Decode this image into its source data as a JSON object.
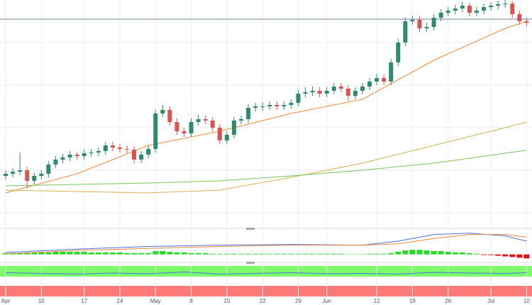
{
  "chart_data": [
    {
      "type": "candlestick",
      "categories": [
        "Apr",
        null,
        null,
        null,
        null,
        "10",
        null,
        null,
        null,
        null,
        null,
        "17",
        null,
        null,
        null,
        null,
        "24",
        null,
        null,
        null,
        null,
        "May",
        null,
        null,
        null,
        null,
        "8",
        null,
        null,
        null,
        null,
        "15",
        null,
        null,
        null,
        null,
        "22",
        null,
        null,
        null,
        null,
        "29",
        null,
        null,
        null,
        "Jun",
        null,
        null,
        null,
        null,
        null,
        null,
        "12",
        null,
        null,
        null,
        null,
        "19",
        null,
        null,
        null,
        null,
        "26",
        null,
        null,
        null,
        null,
        null,
        "Jul",
        null,
        null,
        null,
        null,
        "10"
      ],
      "open": [
        72,
        75,
        78,
        80,
        65,
        72,
        75,
        88,
        95,
        98,
        102,
        100,
        104,
        105,
        107,
        115,
        112,
        110,
        109,
        95,
        102,
        110,
        160,
        165,
        148,
        135,
        132,
        148,
        152,
        150,
        140,
        122,
        130,
        150,
        152,
        168,
        170,
        170,
        172,
        170,
        172,
        175,
        188,
        190,
        192,
        188,
        192,
        198,
        195,
        185,
        192,
        198,
        205,
        210,
        205,
        232,
        260,
        290,
        292,
        280,
        282,
        295,
        302,
        305,
        308,
        312,
        302,
        305,
        310,
        312,
        314,
        315,
        300,
        290
      ],
      "high": [
        80,
        83,
        105,
        85,
        77,
        80,
        93,
        100,
        103,
        107,
        105,
        109,
        110,
        112,
        120,
        120,
        117,
        115,
        114,
        107,
        115,
        165,
        172,
        170,
        153,
        140,
        153,
        158,
        157,
        155,
        145,
        135,
        155,
        157,
        173,
        175,
        176,
        177,
        177,
        177,
        180,
        193,
        197,
        198,
        197,
        197,
        203,
        203,
        200,
        197,
        203,
        210,
        216,
        215,
        237,
        265,
        295,
        298,
        297,
        288,
        300,
        307,
        310,
        313,
        318,
        316,
        310,
        315,
        317,
        319,
        320,
        318,
        305,
        295
      ],
      "low": [
        67,
        70,
        73,
        55,
        60,
        67,
        70,
        83,
        90,
        93,
        95,
        95,
        99,
        100,
        102,
        107,
        105,
        104,
        90,
        90,
        97,
        105,
        155,
        143,
        130,
        127,
        127,
        143,
        145,
        135,
        117,
        117,
        125,
        145,
        147,
        163,
        164,
        165,
        165,
        165,
        167,
        170,
        183,
        185,
        183,
        183,
        187,
        190,
        178,
        180,
        187,
        193,
        200,
        200,
        200,
        227,
        255,
        285,
        275,
        275,
        277,
        290,
        297,
        300,
        303,
        297,
        297,
        300,
        305,
        307,
        309,
        295,
        285,
        283
      ],
      "close": [
        75,
        78,
        80,
        65,
        72,
        75,
        88,
        95,
        98,
        102,
        100,
        104,
        105,
        107,
        115,
        112,
        110,
        109,
        95,
        102,
        110,
        160,
        165,
        148,
        135,
        132,
        148,
        152,
        150,
        140,
        122,
        130,
        150,
        152,
        168,
        170,
        170,
        172,
        170,
        172,
        175,
        188,
        190,
        192,
        188,
        192,
        198,
        195,
        185,
        192,
        198,
        205,
        210,
        205,
        232,
        260,
        290,
        292,
        280,
        282,
        295,
        302,
        305,
        308,
        312,
        302,
        305,
        310,
        312,
        314,
        315,
        300,
        290,
        288
      ],
      "up_color": "#2e8b70",
      "down_color": "#d9534f",
      "ylim": [
        0,
        320
      ],
      "reference_line": {
        "value": 293,
        "color": "#6c7fa8"
      },
      "overlays": [
        {
          "color": "#f0883a",
          "x": [
            0,
            10,
            20,
            30,
            40,
            50,
            60,
            70,
            73
          ],
          "values": [
            48,
            75,
            115,
            135,
            160,
            180,
            235,
            280,
            290
          ]
        },
        {
          "color": "#d4b24a",
          "x": [
            0,
            10,
            20,
            30,
            40,
            50,
            60,
            70,
            73
          ],
          "values": [
            52,
            50,
            48,
            52,
            70,
            90,
            115,
            140,
            148
          ]
        },
        {
          "color": "#7dc15a",
          "x": [
            0,
            10,
            20,
            30,
            40,
            50,
            60,
            70,
            73
          ],
          "values": [
            58,
            60,
            62,
            65,
            72,
            80,
            90,
            104,
            108
          ]
        }
      ]
    },
    {
      "type": "macd",
      "ylim": [
        -10,
        35
      ],
      "up_color": "#22dd22",
      "down_color": "#e01010",
      "histogram": [
        2,
        2,
        2,
        3,
        3,
        3,
        3,
        4,
        4,
        4,
        4,
        4,
        3,
        3,
        3,
        3,
        3,
        2,
        2,
        2,
        2,
        5,
        5,
        4,
        3,
        3,
        2,
        2,
        2,
        1,
        1,
        1,
        1,
        1,
        1,
        1,
        1,
        1,
        1,
        1,
        1,
        1,
        1,
        1,
        1,
        1,
        1,
        1,
        0,
        0,
        0,
        1,
        1,
        1,
        2,
        4,
        6,
        7,
        7,
        6,
        5,
        5,
        4,
        3,
        3,
        2,
        1,
        -1,
        -1,
        -2,
        -3,
        -4,
        -5,
        -6
      ],
      "lines": [
        {
          "color": "#4a6fe0",
          "x": [
            0,
            10,
            20,
            30,
            40,
            50,
            55,
            60,
            65,
            70,
            73
          ],
          "values": [
            3,
            8,
            12,
            14,
            15,
            14,
            20,
            30,
            32,
            28,
            20
          ]
        },
        {
          "color": "#f0883a",
          "x": [
            0,
            10,
            20,
            30,
            40,
            50,
            55,
            60,
            65,
            70,
            73
          ],
          "values": [
            1,
            6,
            9,
            12,
            14,
            14,
            16,
            24,
            30,
            30,
            26
          ]
        }
      ]
    },
    {
      "type": "oscillator",
      "ylim": [
        0,
        100
      ],
      "line": {
        "color": "#4a6fe0",
        "x": [
          0,
          5,
          10,
          15,
          20,
          25,
          30,
          35,
          40,
          45,
          50,
          55,
          60,
          65,
          70,
          73
        ],
        "values": [
          74,
          72,
          70,
          73,
          71,
          76,
          70,
          72,
          74,
          71,
          72,
          70,
          75,
          73,
          72,
          74
        ]
      }
    }
  ]
}
